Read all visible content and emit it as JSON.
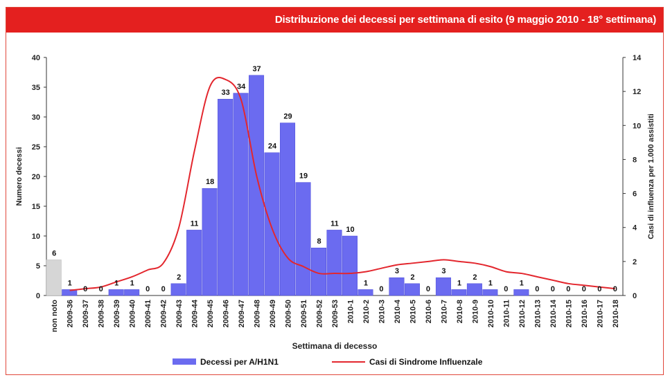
{
  "title": "Distribuzione dei decessi per settimana di esito (9 maggio 2010 - 18° settimana)",
  "colors": {
    "title_bar": "#e4201f",
    "bar": "#6b6bf0",
    "bar_unknown": "#d6d6d6",
    "line": "#e3262d",
    "frame": "#e0463a"
  },
  "chart_data": {
    "type": "bar",
    "xlabel": "Settimana di decesso",
    "ylabel": "Numero decessi",
    "y2label": "Casi di influenza per 1.000 assistiti",
    "ylim": [
      0,
      40
    ],
    "y2lim": [
      0,
      14
    ],
    "yticks": [
      0,
      5,
      10,
      15,
      20,
      25,
      30,
      35,
      40
    ],
    "y2ticks": [
      0,
      2,
      4,
      6,
      8,
      10,
      12,
      14
    ],
    "grid": false,
    "legend_position": "bottom",
    "categories": [
      "non noto",
      "2009-36",
      "2009-37",
      "2009-38",
      "2009-39",
      "2009-40",
      "2009-41",
      "2009-42",
      "2009-43",
      "2009-44",
      "2009-45",
      "2009-46",
      "2009-47",
      "2009-48",
      "2009-49",
      "2009-50",
      "2009-51",
      "2009-52",
      "2009-53",
      "2010-1",
      "2010-2",
      "2010-3",
      "2010-4",
      "2010-5",
      "2010-6",
      "2010-7",
      "2010-8",
      "2010-9",
      "2010-10",
      "2010-11",
      "2010-12",
      "2010-13",
      "2010-14",
      "2010-15",
      "2010-16",
      "2010-17",
      "2010-18"
    ],
    "series": [
      {
        "name": "Decessi per A/H1N1",
        "type": "bar",
        "axis": "left",
        "values": [
          6,
          1,
          0,
          0,
          1,
          1,
          0,
          0,
          2,
          11,
          18,
          33,
          34,
          37,
          24,
          29,
          19,
          8,
          11,
          10,
          1,
          0,
          3,
          2,
          0,
          3,
          1,
          2,
          1,
          0,
          1,
          0,
          0,
          0,
          0,
          0,
          0
        ]
      },
      {
        "name": "Casi di Sindrome Influenzale",
        "type": "line",
        "axis": "right",
        "values": [
          null,
          0.3,
          0.4,
          0.5,
          0.8,
          1.1,
          1.5,
          1.9,
          4.0,
          8.5,
          12.3,
          12.7,
          11.5,
          7.0,
          3.9,
          2.2,
          1.7,
          1.3,
          1.3,
          1.3,
          1.4,
          1.6,
          1.8,
          1.9,
          2.0,
          2.1,
          2.0,
          1.9,
          1.7,
          1.4,
          1.3,
          1.1,
          0.9,
          0.7,
          0.6,
          0.5,
          0.4
        ]
      }
    ]
  }
}
